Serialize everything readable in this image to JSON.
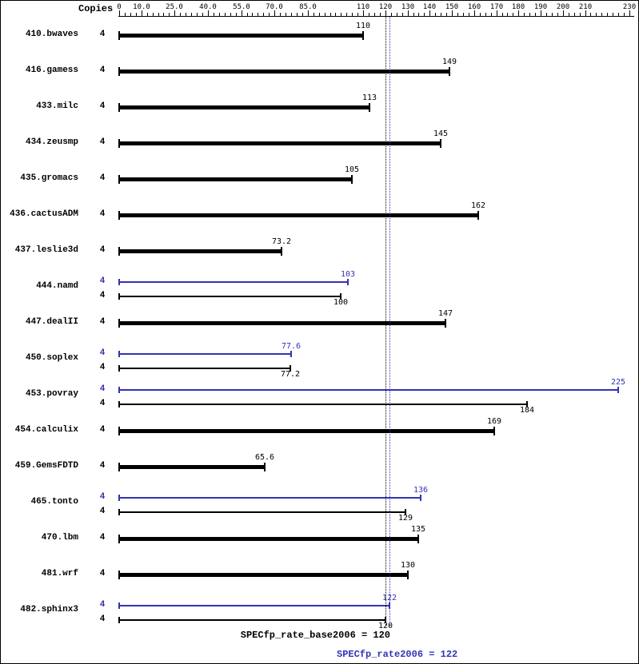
{
  "header": {
    "copies_label": "Copies"
  },
  "colors": {
    "base": "#000000",
    "peak": "#3333b3"
  },
  "axis": {
    "min": 0,
    "max": 230,
    "minor_tick_step": 2.5,
    "tick_values": [
      0,
      10,
      25,
      40,
      55,
      70,
      85,
      110,
      120,
      130,
      140,
      150,
      160,
      170,
      180,
      190,
      200,
      210,
      230
    ],
    "tick_labels": [
      "0",
      "10.0",
      "25.0",
      "40.0",
      "55.0",
      "70.0",
      "85.0",
      "110",
      "120",
      "130",
      "140",
      "150",
      "160",
      "170",
      "180",
      "190",
      "200",
      "210",
      "230"
    ]
  },
  "benchmarks": [
    {
      "name": "410.bwaves",
      "copies": "4",
      "base": "110",
      "peak": null
    },
    {
      "name": "416.gamess",
      "copies": "4",
      "base": "149",
      "peak": null
    },
    {
      "name": "433.milc",
      "copies": "4",
      "base": "113",
      "peak": null
    },
    {
      "name": "434.zeusmp",
      "copies": "4",
      "base": "145",
      "peak": null
    },
    {
      "name": "435.gromacs",
      "copies": "4",
      "base": "105",
      "peak": null
    },
    {
      "name": "436.cactusADM",
      "copies": "4",
      "base": "162",
      "peak": null
    },
    {
      "name": "437.leslie3d",
      "copies": "4",
      "base": "73.2",
      "peak": null
    },
    {
      "name": "444.namd",
      "copies": "4",
      "base": "100",
      "peak": "103"
    },
    {
      "name": "447.dealII",
      "copies": "4",
      "base": "147",
      "peak": null
    },
    {
      "name": "450.soplex",
      "copies": "4",
      "base": "77.2",
      "peak": "77.6"
    },
    {
      "name": "453.povray",
      "copies": "4",
      "base": "184",
      "peak": "225"
    },
    {
      "name": "454.calculix",
      "copies": "4",
      "base": "169",
      "peak": null
    },
    {
      "name": "459.GemsFDTD",
      "copies": "4",
      "base": "65.6",
      "peak": null
    },
    {
      "name": "465.tonto",
      "copies": "4",
      "base": "129",
      "peak": "136"
    },
    {
      "name": "470.lbm",
      "copies": "4",
      "base": "135",
      "peak": null
    },
    {
      "name": "481.wrf",
      "copies": "4",
      "base": "130",
      "peak": null
    },
    {
      "name": "482.sphinx3",
      "copies": "4",
      "base": "120",
      "peak": "122"
    }
  ],
  "reference_lines": [
    {
      "name": "base-metric-line",
      "value": 120,
      "color": "#000000",
      "style": "dotted"
    },
    {
      "name": "peak-metric-line",
      "value": 122,
      "color": "#3333b3",
      "style": "dotted"
    }
  ],
  "footer": {
    "base_metric_label": "SPECfp_rate_base2006 = 120",
    "peak_metric_label": "SPECfp_rate2006 = 122"
  },
  "chart_data": {
    "type": "bar",
    "orientation": "horizontal",
    "categories": [
      "410.bwaves",
      "416.gamess",
      "433.milc",
      "434.zeusmp",
      "435.gromacs",
      "436.cactusADM",
      "437.leslie3d",
      "444.namd",
      "447.dealII",
      "450.soplex",
      "453.povray",
      "454.calculix",
      "459.GemsFDTD",
      "465.tonto",
      "470.lbm",
      "481.wrf",
      "482.sphinx3"
    ],
    "copies_per_benchmark": 4,
    "series": [
      {
        "name": "peak",
        "color": "#3333b3",
        "values": [
          null,
          null,
          null,
          null,
          null,
          null,
          null,
          103,
          null,
          77.6,
          225,
          null,
          null,
          136,
          null,
          null,
          122
        ]
      },
      {
        "name": "base",
        "color": "#000000",
        "values": [
          110,
          149,
          113,
          145,
          105,
          162,
          73.2,
          100,
          147,
          77.2,
          184,
          169,
          65.6,
          129,
          135,
          130,
          120
        ]
      }
    ],
    "xlim": [
      0,
      230
    ],
    "x_tick_labels": [
      "0",
      "10.0",
      "25.0",
      "40.0",
      "55.0",
      "70.0",
      "85.0",
      "110",
      "120",
      "130",
      "140",
      "150",
      "160",
      "170",
      "180",
      "190",
      "200",
      "210",
      "230"
    ],
    "grid": false,
    "legend": false,
    "reference_lines": [
      {
        "value": 120,
        "label": "SPECfp_rate_base2006 = 120",
        "color": "#000000"
      },
      {
        "value": 122,
        "label": "SPECfp_rate2006 = 122",
        "color": "#3333b3"
      }
    ]
  }
}
